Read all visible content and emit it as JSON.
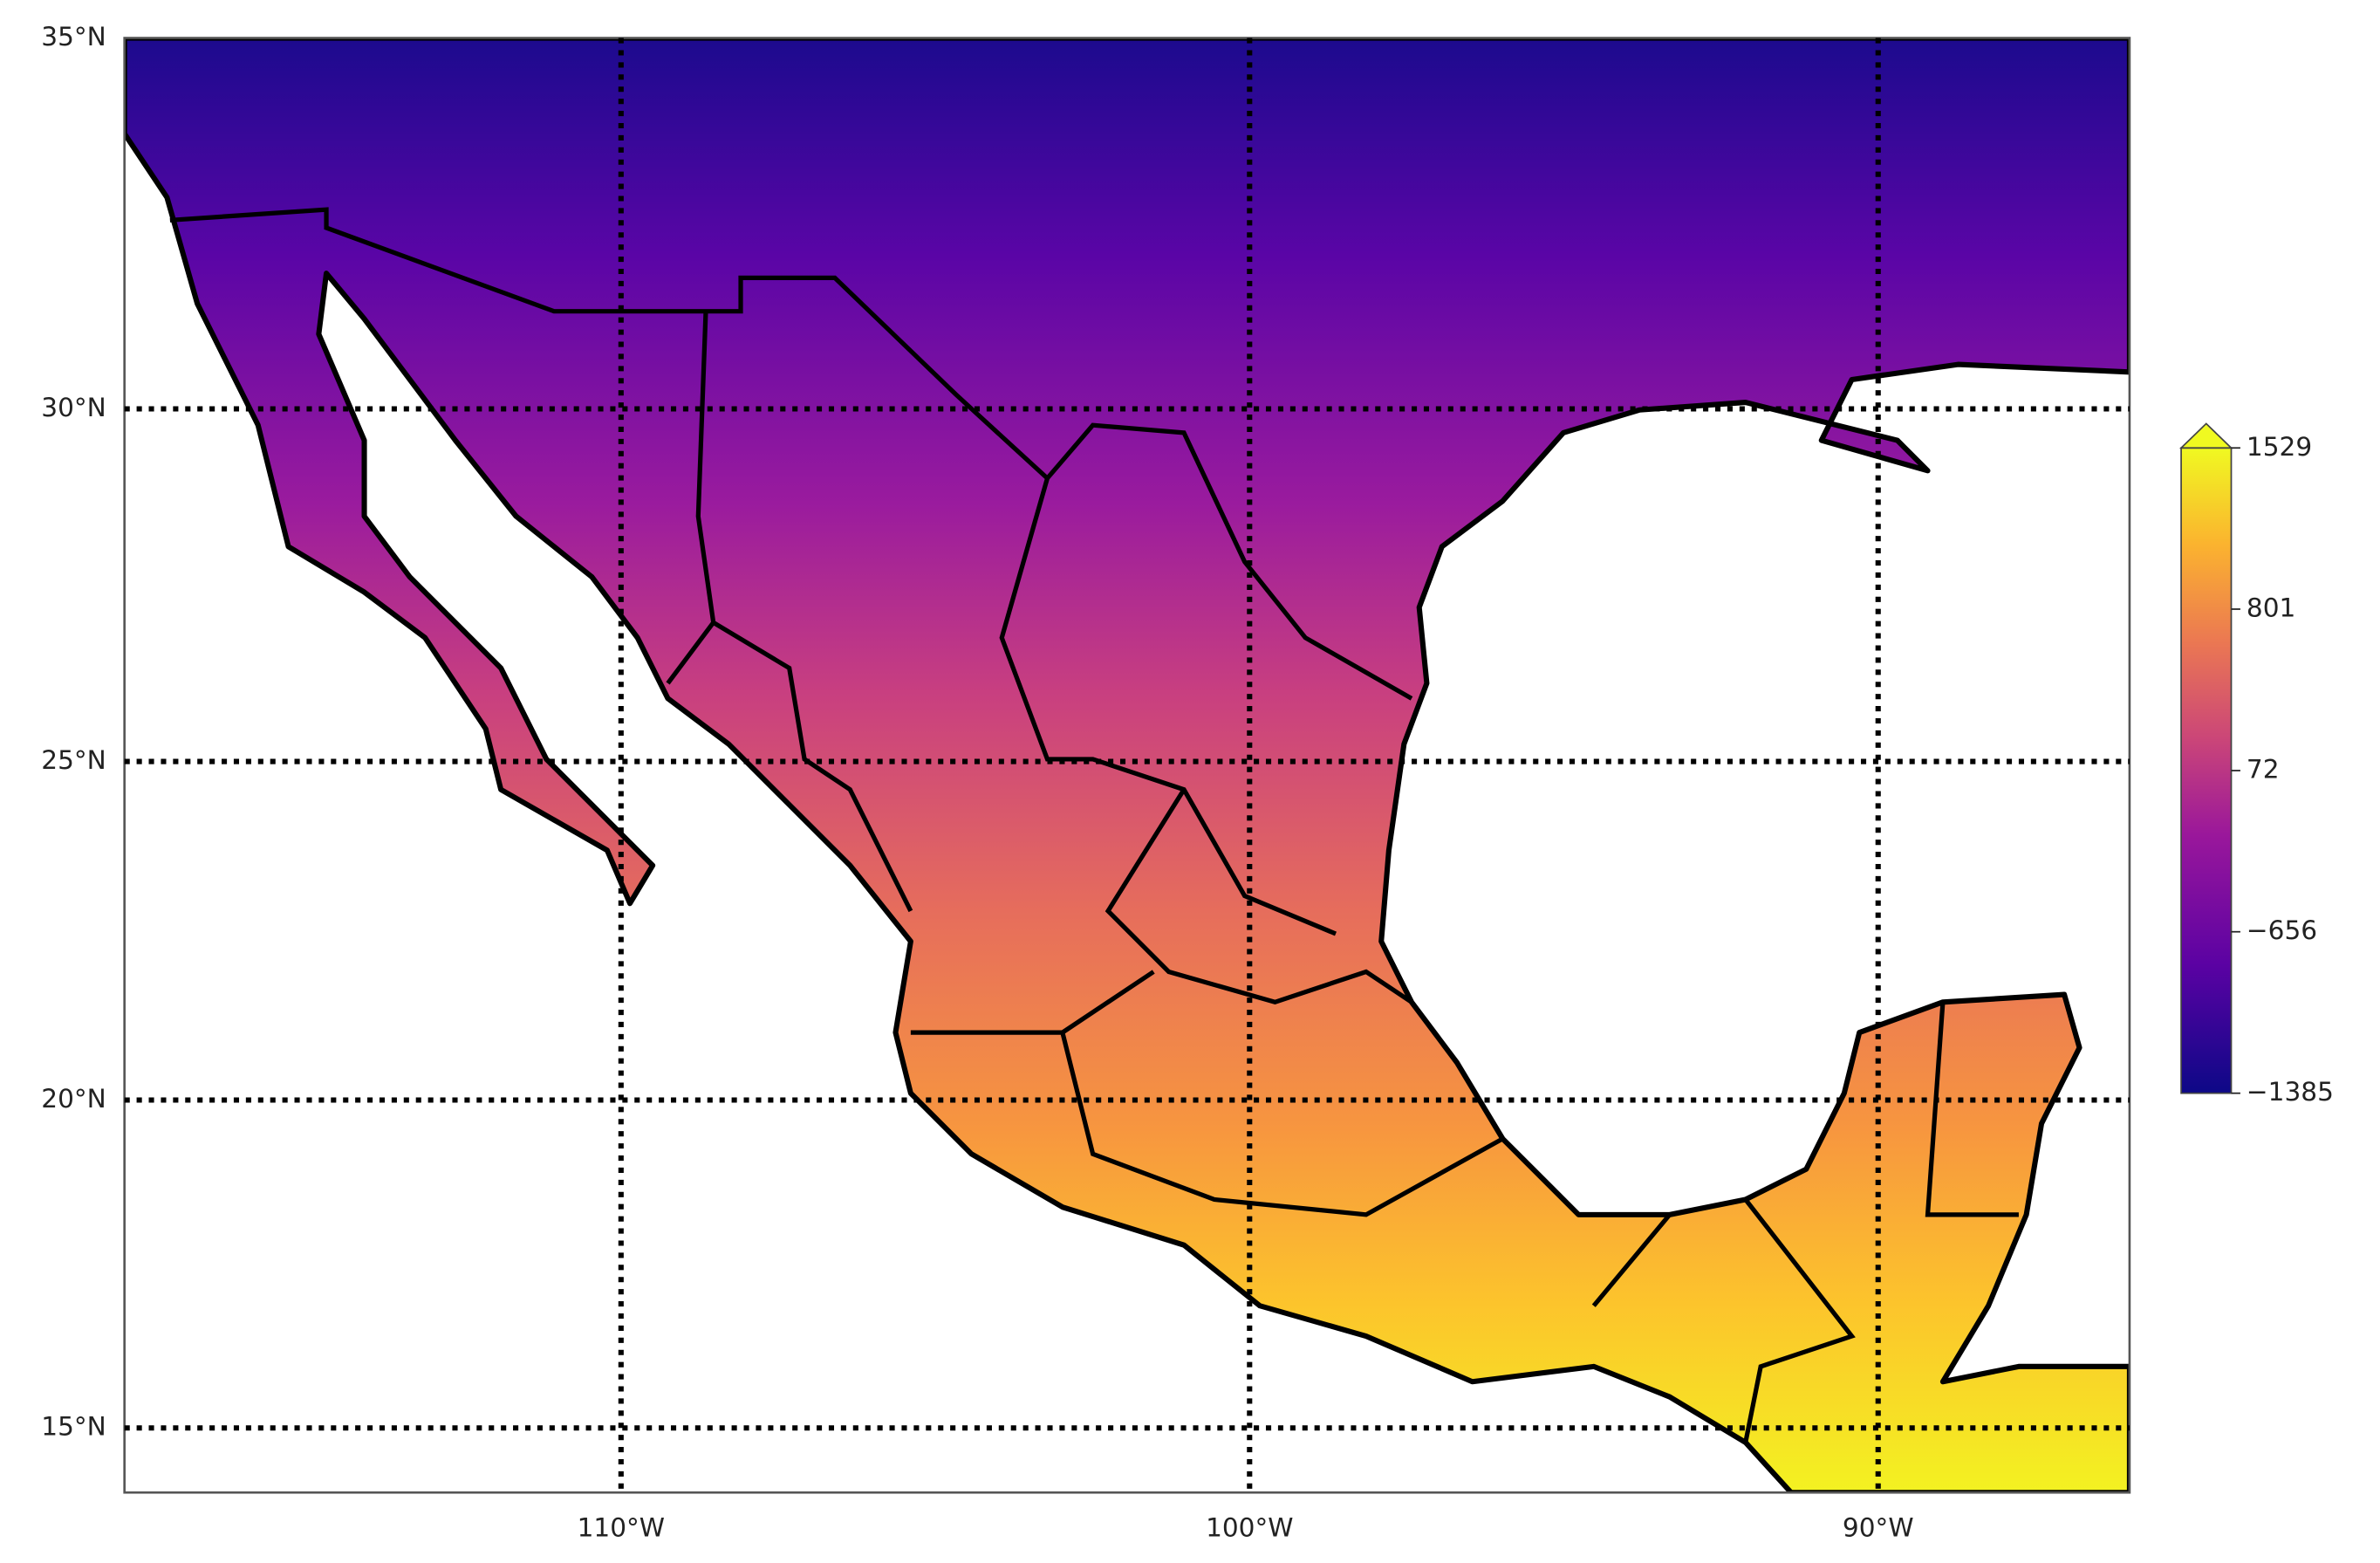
{
  "chart_data": {
    "type": "map",
    "xlim": [
      -117.9,
      -86.0
    ],
    "ylim": [
      14.0,
      35
    ],
    "xticks": [
      {
        "value": -110,
        "label": "110°W"
      },
      {
        "value": -100,
        "label": "100°W"
      },
      {
        "value": -90,
        "label": "90°W"
      }
    ],
    "yticks": [
      {
        "value": 15,
        "label": "15°N"
      },
      {
        "value": 20,
        "label": "20°N"
      },
      {
        "value": 25,
        "label": "25°N"
      },
      {
        "value": 30,
        "label": "30°N"
      },
      {
        "value": 35,
        "label": "35°N"
      }
    ],
    "grid": true,
    "colorbar": {
      "clim": [
        -1385,
        1529
      ],
      "ticks": [
        {
          "value": -1385,
          "label": "−1385"
        },
        {
          "value": -656,
          "label": "−656"
        },
        72,
        801,
        1529
      ],
      "extend": "max"
    }
  }
}
